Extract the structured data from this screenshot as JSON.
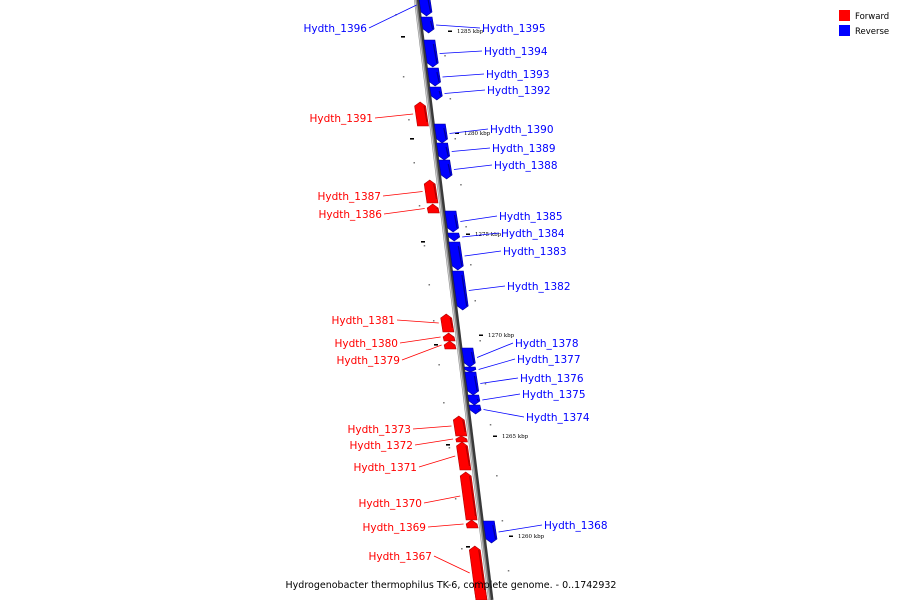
{
  "caption": "Hydrogenobacter thermophilus TK-6, complete genome. - 0..1742932",
  "legend": [
    {
      "label": "Forward",
      "color": "#ff0000"
    },
    {
      "label": "Reverse",
      "color": "#0000ff"
    }
  ],
  "colors": {
    "forward": "#ff0000",
    "reverse": "#0000ff",
    "backbone": "#8a8a8a"
  },
  "scale": {
    "unit": "kbp",
    "ticks": [
      "1285 kbp",
      "1280 kbp",
      "1275 kbp",
      "1270 kbp",
      "1265 kbp",
      "1260 kbp"
    ]
  },
  "genes": [
    {
      "name": "Hydth_1396",
      "strand": "reverse"
    },
    {
      "name": "Hydth_1395",
      "strand": "reverse"
    },
    {
      "name": "Hydth_1394",
      "strand": "reverse"
    },
    {
      "name": "Hydth_1393",
      "strand": "reverse"
    },
    {
      "name": "Hydth_1392",
      "strand": "reverse"
    },
    {
      "name": "Hydth_1391",
      "strand": "forward"
    },
    {
      "name": "Hydth_1390",
      "strand": "reverse"
    },
    {
      "name": "Hydth_1389",
      "strand": "reverse"
    },
    {
      "name": "Hydth_1388",
      "strand": "reverse"
    },
    {
      "name": "Hydth_1387",
      "strand": "forward"
    },
    {
      "name": "Hydth_1386",
      "strand": "forward"
    },
    {
      "name": "Hydth_1385",
      "strand": "reverse"
    },
    {
      "name": "Hydth_1384",
      "strand": "reverse"
    },
    {
      "name": "Hydth_1383",
      "strand": "reverse"
    },
    {
      "name": "Hydth_1382",
      "strand": "reverse"
    },
    {
      "name": "Hydth_1381",
      "strand": "forward"
    },
    {
      "name": "Hydth_1380",
      "strand": "forward"
    },
    {
      "name": "Hydth_1379",
      "strand": "forward"
    },
    {
      "name": "Hydth_1378",
      "strand": "reverse"
    },
    {
      "name": "Hydth_1377",
      "strand": "reverse"
    },
    {
      "name": "Hydth_1376",
      "strand": "reverse"
    },
    {
      "name": "Hydth_1375",
      "strand": "reverse"
    },
    {
      "name": "Hydth_1374",
      "strand": "reverse"
    },
    {
      "name": "Hydth_1373",
      "strand": "forward"
    },
    {
      "name": "Hydth_1372",
      "strand": "forward"
    },
    {
      "name": "Hydth_1371",
      "strand": "forward"
    },
    {
      "name": "Hydth_1370",
      "strand": "forward"
    },
    {
      "name": "Hydth_1369",
      "strand": "forward"
    },
    {
      "name": "Hydth_1368",
      "strand": "reverse"
    },
    {
      "name": "Hydth_1367",
      "strand": "forward"
    }
  ]
}
